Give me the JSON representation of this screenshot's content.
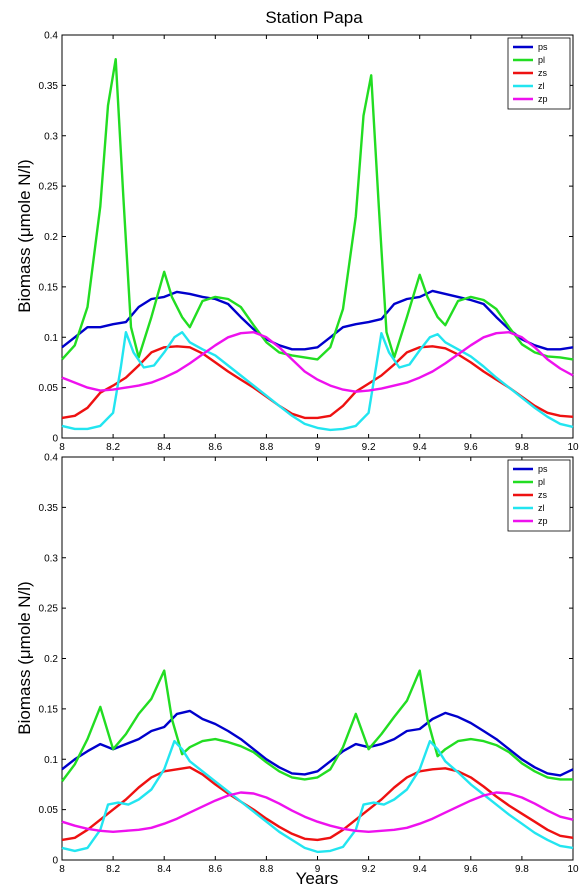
{
  "figure_title": "Station Papa",
  "chart_data": [
    {
      "type": "line",
      "title": "Station Papa",
      "xlabel": "",
      "ylabel": "Biomass (μmole N/l)",
      "xlim": [
        8,
        10
      ],
      "ylim": [
        0,
        0.4
      ],
      "xticks": [
        "8",
        "8.2",
        "8.4",
        "8.6",
        "8.8",
        "9",
        "9.2",
        "9.4",
        "9.6",
        "9.8",
        "10"
      ],
      "yticks": [
        "0",
        "0.05",
        "0.1",
        "0.15",
        "0.2",
        "0.25",
        "0.3",
        "0.35",
        "0.4"
      ],
      "grid": false,
      "legend_position": "top-right",
      "series": [
        {
          "name": "ps",
          "color": "#0000cc",
          "x": [
            8.0,
            8.05,
            8.1,
            8.15,
            8.2,
            8.25,
            8.3,
            8.35,
            8.4,
            8.45,
            8.5,
            8.55,
            8.6,
            8.65,
            8.7,
            8.75,
            8.8,
            8.85,
            8.9,
            8.95,
            9.0,
            9.05,
            9.1,
            9.15,
            9.2,
            9.25,
            9.3,
            9.35,
            9.4,
            9.45,
            9.5,
            9.55,
            9.6,
            9.65,
            9.7,
            9.75,
            9.8,
            9.85,
            9.9,
            9.95,
            10.0
          ],
          "values": [
            0.09,
            0.1,
            0.11,
            0.11,
            0.113,
            0.115,
            0.13,
            0.138,
            0.14,
            0.145,
            0.143,
            0.14,
            0.138,
            0.133,
            0.12,
            0.108,
            0.098,
            0.092,
            0.088,
            0.088,
            0.09,
            0.1,
            0.11,
            0.113,
            0.115,
            0.118,
            0.133,
            0.138,
            0.14,
            0.146,
            0.143,
            0.14,
            0.137,
            0.133,
            0.12,
            0.108,
            0.098,
            0.092,
            0.088,
            0.088,
            0.09
          ]
        },
        {
          "name": "pl",
          "color": "#22dd22",
          "x": [
            8.0,
            8.05,
            8.1,
            8.15,
            8.18,
            8.21,
            8.24,
            8.27,
            8.3,
            8.35,
            8.4,
            8.43,
            8.47,
            8.5,
            8.55,
            8.6,
            8.65,
            8.7,
            8.75,
            8.8,
            8.85,
            8.9,
            8.95,
            9.0,
            9.05,
            9.1,
            9.15,
            9.18,
            9.21,
            9.24,
            9.27,
            9.3,
            9.35,
            9.4,
            9.43,
            9.47,
            9.5,
            9.55,
            9.6,
            9.65,
            9.7,
            9.75,
            9.8,
            9.85,
            9.9,
            9.95,
            10.0
          ],
          "values": [
            0.078,
            0.092,
            0.13,
            0.23,
            0.33,
            0.376,
            0.24,
            0.11,
            0.08,
            0.12,
            0.165,
            0.14,
            0.12,
            0.11,
            0.136,
            0.14,
            0.138,
            0.13,
            0.112,
            0.095,
            0.085,
            0.082,
            0.08,
            0.078,
            0.09,
            0.128,
            0.22,
            0.32,
            0.36,
            0.23,
            0.105,
            0.08,
            0.12,
            0.162,
            0.14,
            0.12,
            0.112,
            0.136,
            0.14,
            0.137,
            0.128,
            0.11,
            0.093,
            0.085,
            0.081,
            0.08,
            0.078
          ]
        },
        {
          "name": "zs",
          "color": "#ee1111",
          "x": [
            8.0,
            8.05,
            8.1,
            8.15,
            8.2,
            8.25,
            8.3,
            8.35,
            8.4,
            8.45,
            8.5,
            8.55,
            8.6,
            8.65,
            8.7,
            8.75,
            8.8,
            8.85,
            8.9,
            8.95,
            9.0,
            9.05,
            9.1,
            9.15,
            9.2,
            9.25,
            9.3,
            9.35,
            9.4,
            9.45,
            9.5,
            9.55,
            9.6,
            9.65,
            9.7,
            9.75,
            9.8,
            9.85,
            9.9,
            9.95,
            10.0
          ],
          "values": [
            0.02,
            0.022,
            0.03,
            0.045,
            0.052,
            0.06,
            0.072,
            0.085,
            0.09,
            0.091,
            0.09,
            0.084,
            0.075,
            0.066,
            0.058,
            0.05,
            0.041,
            0.032,
            0.024,
            0.02,
            0.02,
            0.022,
            0.032,
            0.046,
            0.054,
            0.062,
            0.073,
            0.085,
            0.09,
            0.091,
            0.089,
            0.083,
            0.075,
            0.066,
            0.058,
            0.05,
            0.041,
            0.032,
            0.025,
            0.022,
            0.021
          ]
        },
        {
          "name": "zl",
          "color": "#22e5f0",
          "x": [
            8.0,
            8.05,
            8.1,
            8.15,
            8.2,
            8.23,
            8.25,
            8.28,
            8.32,
            8.36,
            8.4,
            8.44,
            8.47,
            8.5,
            8.55,
            8.6,
            8.65,
            8.7,
            8.75,
            8.8,
            8.85,
            8.9,
            8.95,
            9.0,
            9.05,
            9.1,
            9.15,
            9.2,
            9.23,
            9.25,
            9.28,
            9.32,
            9.36,
            9.4,
            9.44,
            9.47,
            9.5,
            9.55,
            9.6,
            9.65,
            9.7,
            9.75,
            9.8,
            9.85,
            9.9,
            9.95,
            10.0
          ],
          "values": [
            0.012,
            0.009,
            0.009,
            0.012,
            0.025,
            0.07,
            0.105,
            0.085,
            0.07,
            0.072,
            0.085,
            0.1,
            0.105,
            0.095,
            0.088,
            0.082,
            0.072,
            0.062,
            0.052,
            0.042,
            0.032,
            0.022,
            0.014,
            0.01,
            0.008,
            0.009,
            0.012,
            0.025,
            0.072,
            0.104,
            0.085,
            0.07,
            0.073,
            0.087,
            0.1,
            0.103,
            0.095,
            0.088,
            0.081,
            0.071,
            0.06,
            0.05,
            0.04,
            0.03,
            0.021,
            0.014,
            0.011
          ]
        },
        {
          "name": "zp",
          "color": "#ee11ee",
          "x": [
            8.0,
            8.05,
            8.1,
            8.15,
            8.2,
            8.25,
            8.3,
            8.35,
            8.4,
            8.45,
            8.5,
            8.55,
            8.6,
            8.65,
            8.7,
            8.75,
            8.8,
            8.85,
            8.9,
            8.95,
            9.0,
            9.05,
            9.1,
            9.15,
            9.2,
            9.25,
            9.3,
            9.35,
            9.4,
            9.45,
            9.5,
            9.55,
            9.6,
            9.65,
            9.7,
            9.75,
            9.8,
            9.85,
            9.9,
            9.95,
            10.0
          ],
          "values": [
            0.06,
            0.055,
            0.05,
            0.047,
            0.048,
            0.05,
            0.052,
            0.055,
            0.06,
            0.066,
            0.074,
            0.083,
            0.092,
            0.1,
            0.104,
            0.105,
            0.1,
            0.09,
            0.078,
            0.066,
            0.058,
            0.052,
            0.048,
            0.046,
            0.047,
            0.049,
            0.052,
            0.055,
            0.06,
            0.066,
            0.074,
            0.083,
            0.092,
            0.1,
            0.104,
            0.105,
            0.1,
            0.09,
            0.078,
            0.069,
            0.062
          ]
        }
      ]
    },
    {
      "type": "line",
      "title": "",
      "xlabel": "Years",
      "ylabel": "Biomass (μmole N/l)",
      "xlim": [
        8,
        10
      ],
      "ylim": [
        0,
        0.4
      ],
      "xticks": [
        "8",
        "8.2",
        "8.4",
        "8.6",
        "8.8",
        "9",
        "9.2",
        "9.4",
        "9.6",
        "9.8",
        "10"
      ],
      "yticks": [
        "0",
        "0.05",
        "0.1",
        "0.15",
        "0.2",
        "0.25",
        "0.3",
        "0.35",
        "0.4"
      ],
      "grid": false,
      "legend_position": "top-right",
      "series": [
        {
          "name": "ps",
          "color": "#0000cc",
          "x": [
            8.0,
            8.05,
            8.1,
            8.15,
            8.2,
            8.25,
            8.3,
            8.35,
            8.4,
            8.45,
            8.5,
            8.55,
            8.6,
            8.65,
            8.7,
            8.75,
            8.8,
            8.85,
            8.9,
            8.95,
            9.0,
            9.05,
            9.1,
            9.15,
            9.2,
            9.25,
            9.3,
            9.35,
            9.4,
            9.45,
            9.5,
            9.55,
            9.6,
            9.65,
            9.7,
            9.75,
            9.8,
            9.85,
            9.9,
            9.95,
            10.0
          ],
          "values": [
            0.09,
            0.1,
            0.108,
            0.115,
            0.11,
            0.115,
            0.12,
            0.128,
            0.132,
            0.145,
            0.148,
            0.14,
            0.135,
            0.128,
            0.12,
            0.11,
            0.1,
            0.092,
            0.086,
            0.085,
            0.088,
            0.098,
            0.108,
            0.115,
            0.112,
            0.115,
            0.12,
            0.128,
            0.13,
            0.14,
            0.146,
            0.142,
            0.136,
            0.128,
            0.12,
            0.11,
            0.1,
            0.092,
            0.086,
            0.084,
            0.09
          ]
        },
        {
          "name": "pl",
          "color": "#22dd22",
          "x": [
            8.0,
            8.05,
            8.1,
            8.15,
            8.2,
            8.25,
            8.3,
            8.35,
            8.4,
            8.43,
            8.47,
            8.5,
            8.55,
            8.6,
            8.65,
            8.7,
            8.75,
            8.8,
            8.85,
            8.9,
            8.95,
            9.0,
            9.05,
            9.1,
            9.15,
            9.2,
            9.25,
            9.3,
            9.35,
            9.4,
            9.43,
            9.47,
            9.5,
            9.55,
            9.6,
            9.65,
            9.7,
            9.75,
            9.8,
            9.85,
            9.9,
            9.95,
            10.0
          ],
          "values": [
            0.078,
            0.095,
            0.12,
            0.152,
            0.11,
            0.125,
            0.145,
            0.16,
            0.188,
            0.14,
            0.105,
            0.112,
            0.118,
            0.12,
            0.117,
            0.113,
            0.107,
            0.097,
            0.088,
            0.082,
            0.08,
            0.082,
            0.09,
            0.112,
            0.145,
            0.11,
            0.125,
            0.142,
            0.158,
            0.188,
            0.14,
            0.103,
            0.11,
            0.118,
            0.12,
            0.118,
            0.114,
            0.107,
            0.096,
            0.088,
            0.082,
            0.08,
            0.08
          ]
        },
        {
          "name": "zs",
          "color": "#ee1111",
          "x": [
            8.0,
            8.05,
            8.1,
            8.15,
            8.2,
            8.25,
            8.3,
            8.35,
            8.4,
            8.45,
            8.5,
            8.55,
            8.6,
            8.65,
            8.7,
            8.75,
            8.8,
            8.85,
            8.9,
            8.95,
            9.0,
            9.05,
            9.1,
            9.15,
            9.2,
            9.25,
            9.3,
            9.35,
            9.4,
            9.45,
            9.5,
            9.55,
            9.6,
            9.65,
            9.7,
            9.75,
            9.8,
            9.85,
            9.9,
            9.95,
            10.0
          ],
          "values": [
            0.02,
            0.022,
            0.03,
            0.04,
            0.05,
            0.06,
            0.072,
            0.082,
            0.088,
            0.09,
            0.092,
            0.085,
            0.075,
            0.066,
            0.058,
            0.05,
            0.041,
            0.033,
            0.026,
            0.021,
            0.02,
            0.022,
            0.03,
            0.04,
            0.05,
            0.06,
            0.072,
            0.082,
            0.088,
            0.09,
            0.091,
            0.088,
            0.082,
            0.073,
            0.063,
            0.054,
            0.046,
            0.038,
            0.03,
            0.024,
            0.022
          ]
        },
        {
          "name": "zl",
          "color": "#22e5f0",
          "x": [
            8.0,
            8.05,
            8.1,
            8.15,
            8.18,
            8.22,
            8.26,
            8.3,
            8.35,
            8.4,
            8.44,
            8.47,
            8.5,
            8.55,
            8.6,
            8.65,
            8.7,
            8.75,
            8.8,
            8.85,
            8.9,
            8.95,
            9.0,
            9.05,
            9.1,
            9.15,
            9.18,
            9.22,
            9.26,
            9.3,
            9.35,
            9.4,
            9.44,
            9.47,
            9.5,
            9.55,
            9.6,
            9.65,
            9.7,
            9.75,
            9.8,
            9.85,
            9.9,
            9.95,
            10.0
          ],
          "values": [
            0.012,
            0.009,
            0.012,
            0.03,
            0.055,
            0.057,
            0.055,
            0.06,
            0.07,
            0.09,
            0.118,
            0.11,
            0.098,
            0.088,
            0.078,
            0.068,
            0.058,
            0.048,
            0.038,
            0.028,
            0.02,
            0.012,
            0.008,
            0.009,
            0.013,
            0.03,
            0.055,
            0.057,
            0.055,
            0.06,
            0.07,
            0.09,
            0.118,
            0.11,
            0.098,
            0.087,
            0.075,
            0.065,
            0.055,
            0.045,
            0.036,
            0.027,
            0.02,
            0.014,
            0.012
          ]
        },
        {
          "name": "zp",
          "color": "#ee11ee",
          "x": [
            8.0,
            8.05,
            8.1,
            8.15,
            8.2,
            8.25,
            8.3,
            8.35,
            8.4,
            8.45,
            8.5,
            8.55,
            8.6,
            8.65,
            8.7,
            8.75,
            8.8,
            8.85,
            8.9,
            8.95,
            9.0,
            9.05,
            9.1,
            9.15,
            9.2,
            9.25,
            9.3,
            9.35,
            9.4,
            9.45,
            9.5,
            9.55,
            9.6,
            9.65,
            9.7,
            9.75,
            9.8,
            9.85,
            9.9,
            9.95,
            10.0
          ],
          "values": [
            0.038,
            0.034,
            0.031,
            0.029,
            0.028,
            0.029,
            0.03,
            0.032,
            0.036,
            0.041,
            0.047,
            0.053,
            0.059,
            0.064,
            0.067,
            0.066,
            0.062,
            0.056,
            0.049,
            0.043,
            0.038,
            0.034,
            0.031,
            0.029,
            0.028,
            0.029,
            0.03,
            0.032,
            0.036,
            0.041,
            0.047,
            0.053,
            0.059,
            0.064,
            0.067,
            0.066,
            0.062,
            0.056,
            0.049,
            0.043,
            0.04
          ]
        }
      ]
    }
  ]
}
